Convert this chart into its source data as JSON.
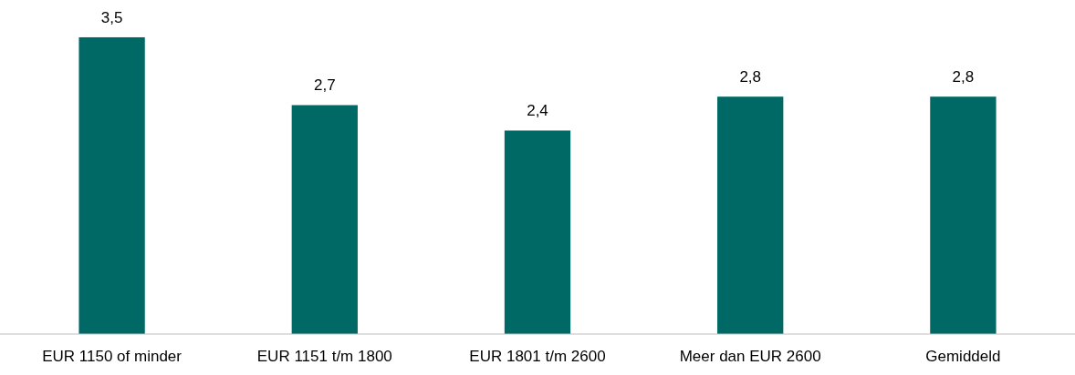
{
  "chart_data": {
    "type": "bar",
    "categories": [
      "EUR 1150 of minder",
      "EUR 1151 t/m 1800",
      "EUR 1801 t/m 2600",
      "Meer dan EUR 2600",
      "Gemiddeld"
    ],
    "values": [
      3.5,
      2.7,
      2.4,
      2.8,
      2.8
    ],
    "value_labels": [
      "3,5",
      "2,7",
      "2,4",
      "2,8",
      "2,8"
    ],
    "color": "#006865"
  }
}
